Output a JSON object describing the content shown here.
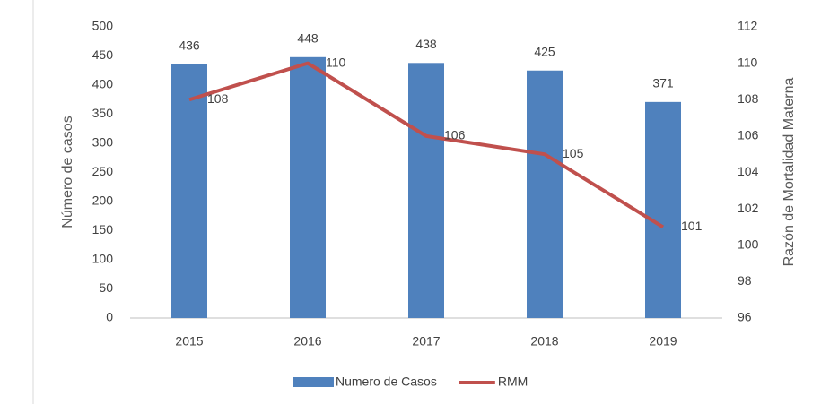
{
  "chart_data": {
    "type": "combo",
    "categories": [
      "2015",
      "2016",
      "2017",
      "2018",
      "2019"
    ],
    "series": [
      {
        "name": "Numero de Casos",
        "type": "bar",
        "color": "#4f81bd",
        "values": [
          436,
          448,
          438,
          425,
          371
        ]
      },
      {
        "name": "RMM",
        "type": "line",
        "color": "#c0504d",
        "axis": "y2",
        "values": [
          108,
          110,
          106,
          105,
          101
        ]
      }
    ],
    "ylabel": "Número de casos",
    "y2label": "Razón de Mortalidad Materna",
    "ylim": [
      0,
      500
    ],
    "yticks": [
      0,
      50,
      100,
      150,
      200,
      250,
      300,
      350,
      400,
      450,
      500
    ],
    "y2lim": [
      96,
      112
    ],
    "y2ticks": [
      96,
      98,
      100,
      102,
      104,
      106,
      108,
      110,
      112
    ],
    "grid": false,
    "legend": "bottom"
  }
}
